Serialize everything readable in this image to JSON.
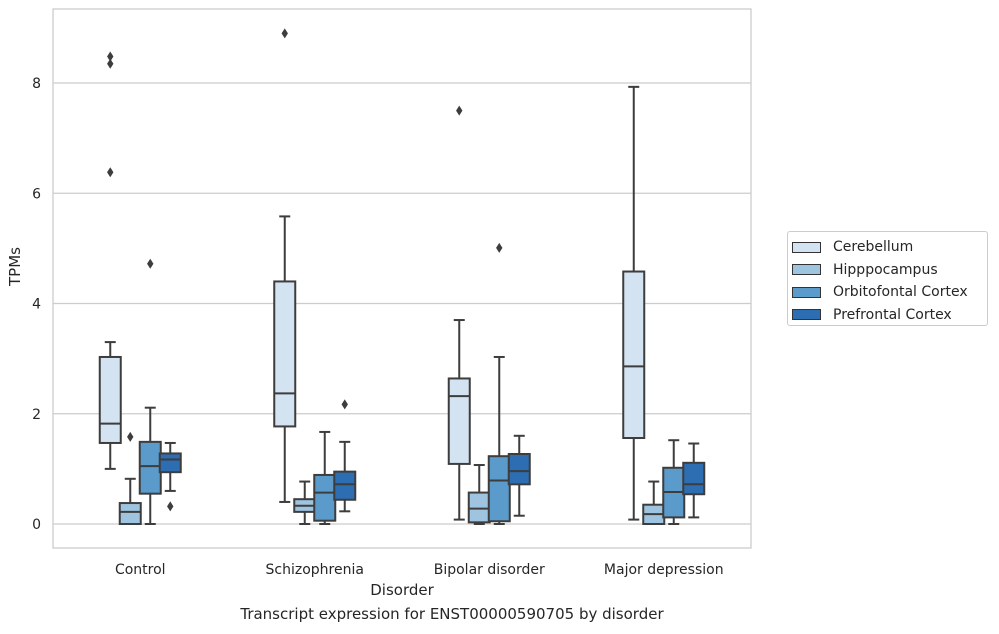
{
  "chart_data": {
    "type": "box",
    "title": "Transcript expression for ENST00000590705 by disorder",
    "xlabel": "Disorder",
    "ylabel": "TPMs",
    "ylim": [
      -0.45,
      9.35
    ],
    "yticks": [
      0,
      2,
      4,
      6,
      8
    ],
    "grid": "horizontal",
    "legend_position": "right",
    "categories": [
      "Control",
      "Schizophrenia",
      "Bipolar disorder",
      "Major depression"
    ],
    "series": [
      {
        "name": "Cerebellum",
        "color": "#d4e3f2",
        "boxes": [
          {
            "whislo": 1.0,
            "q1": 1.47,
            "med": 1.82,
            "q3": 3.03,
            "whishi": 3.3,
            "fliers": [
              6.38,
              8.35,
              8.48
            ]
          },
          {
            "whislo": 0.4,
            "q1": 1.77,
            "med": 2.37,
            "q3": 4.4,
            "whishi": 5.58,
            "fliers": [
              8.9
            ]
          },
          {
            "whislo": 0.08,
            "q1": 1.09,
            "med": 2.32,
            "q3": 2.64,
            "whishi": 3.7,
            "fliers": [
              7.5
            ]
          },
          {
            "whislo": 0.08,
            "q1": 1.56,
            "med": 2.86,
            "q3": 4.58,
            "whishi": 7.93,
            "fliers": []
          }
        ]
      },
      {
        "name": "Hipppocampus",
        "color": "#9fc4e0",
        "boxes": [
          {
            "whislo": 0.0,
            "q1": 0.0,
            "med": 0.22,
            "q3": 0.38,
            "whishi": 0.82,
            "fliers": [
              1.58
            ]
          },
          {
            "whislo": 0.0,
            "q1": 0.22,
            "med": 0.33,
            "q3": 0.45,
            "whishi": 0.77,
            "fliers": []
          },
          {
            "whislo": 0.0,
            "q1": 0.03,
            "med": 0.28,
            "q3": 0.57,
            "whishi": 1.07,
            "fliers": []
          },
          {
            "whislo": 0.0,
            "q1": 0.0,
            "med": 0.18,
            "q3": 0.35,
            "whishi": 0.77,
            "fliers": []
          }
        ]
      },
      {
        "name": "Orbitofontal Cortex",
        "color": "#5a9bcb",
        "boxes": [
          {
            "whislo": 0.0,
            "q1": 0.55,
            "med": 1.05,
            "q3": 1.49,
            "whishi": 2.11,
            "fliers": [
              4.72
            ]
          },
          {
            "whislo": 0.0,
            "q1": 0.06,
            "med": 0.57,
            "q3": 0.89,
            "whishi": 1.67,
            "fliers": []
          },
          {
            "whislo": 0.0,
            "q1": 0.05,
            "med": 0.79,
            "q3": 1.23,
            "whishi": 3.03,
            "fliers": [
              5.01
            ]
          },
          {
            "whislo": 0.0,
            "q1": 0.12,
            "med": 0.58,
            "q3": 1.02,
            "whishi": 1.52,
            "fliers": []
          }
        ]
      },
      {
        "name": "Prefrontal Cortex",
        "color": "#2d6db2",
        "boxes": [
          {
            "whislo": 0.6,
            "q1": 0.94,
            "med": 1.17,
            "q3": 1.28,
            "whishi": 1.47,
            "fliers": [
              0.32
            ]
          },
          {
            "whislo": 0.23,
            "q1": 0.44,
            "med": 0.72,
            "q3": 0.95,
            "whishi": 1.49,
            "fliers": [
              2.17
            ]
          },
          {
            "whislo": 0.15,
            "q1": 0.72,
            "med": 0.96,
            "q3": 1.27,
            "whishi": 1.6,
            "fliers": []
          },
          {
            "whislo": 0.12,
            "q1": 0.54,
            "med": 0.72,
            "q3": 1.11,
            "whishi": 1.46,
            "fliers": []
          }
        ]
      }
    ]
  }
}
